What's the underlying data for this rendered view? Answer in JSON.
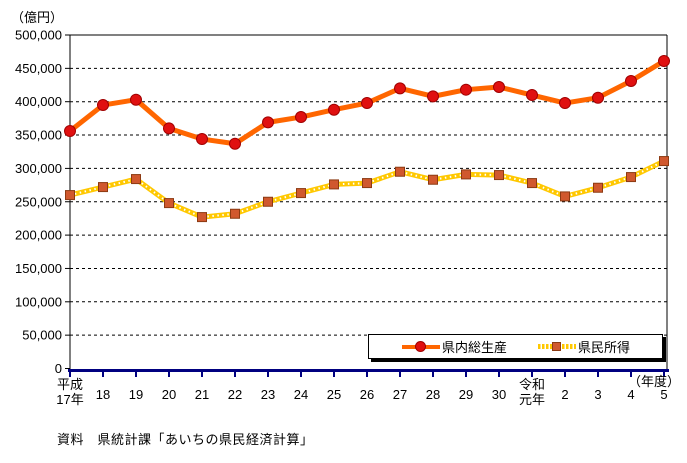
{
  "unit_label": "（億円）",
  "x_unit_label": "（年度）",
  "source": "資料　県統計課「あいちの県民経済計算」",
  "legend": [
    {
      "label": "県内総生産"
    },
    {
      "label": "県民所得"
    }
  ],
  "colors": {
    "gross_line": "#FF6600",
    "gross_marker": "#E01010",
    "gross_marker_border": "#A00000",
    "income_line": "#FFC800",
    "income_marker": "#D0582E",
    "income_marker_border": "#8C3A12",
    "x_axis": "#000080",
    "grid": "#000000"
  },
  "chart_data": {
    "type": "line",
    "title": "",
    "xlabel": "（年度）",
    "ylabel": "（億円）",
    "ylim": [
      0,
      500000
    ],
    "ytick_step": 50000,
    "grid": true,
    "legend_position": "inside-bottom-right",
    "categories": [
      "平成\n17年",
      "18",
      "19",
      "20",
      "21",
      "22",
      "23",
      "24",
      "25",
      "26",
      "27",
      "28",
      "29",
      "30",
      "令和\n元年",
      "2",
      "3",
      "4",
      "5"
    ],
    "y_tick_labels": [
      "0",
      "50,000",
      "100,000",
      "150,000",
      "200,000",
      "250,000",
      "300,000",
      "350,000",
      "400,000",
      "450,000",
      "500,000"
    ],
    "axis_color": "#000080",
    "series": [
      {
        "id": "gross-product",
        "name": "県内総生産",
        "color": "#FF6600",
        "marker": "circle",
        "marker_color": "#E01010",
        "marker_border": "#A00000",
        "overlay_dotted": false,
        "values": [
          356000,
          395000,
          403000,
          360000,
          344000,
          337000,
          369000,
          377000,
          388000,
          398000,
          420000,
          408000,
          418000,
          422000,
          410000,
          398000,
          406000,
          431000,
          461000
        ]
      },
      {
        "id": "prefectural-income",
        "name": "県民所得",
        "color": "#FFC800",
        "marker": "square",
        "marker_color": "#D0582E",
        "marker_border": "#8C3A12",
        "overlay_dotted": true,
        "values": [
          260000,
          272000,
          284000,
          248000,
          227000,
          232000,
          250000,
          263000,
          276000,
          278000,
          295000,
          283000,
          291000,
          290000,
          278000,
          258000,
          271000,
          287000,
          311000
        ]
      }
    ]
  }
}
